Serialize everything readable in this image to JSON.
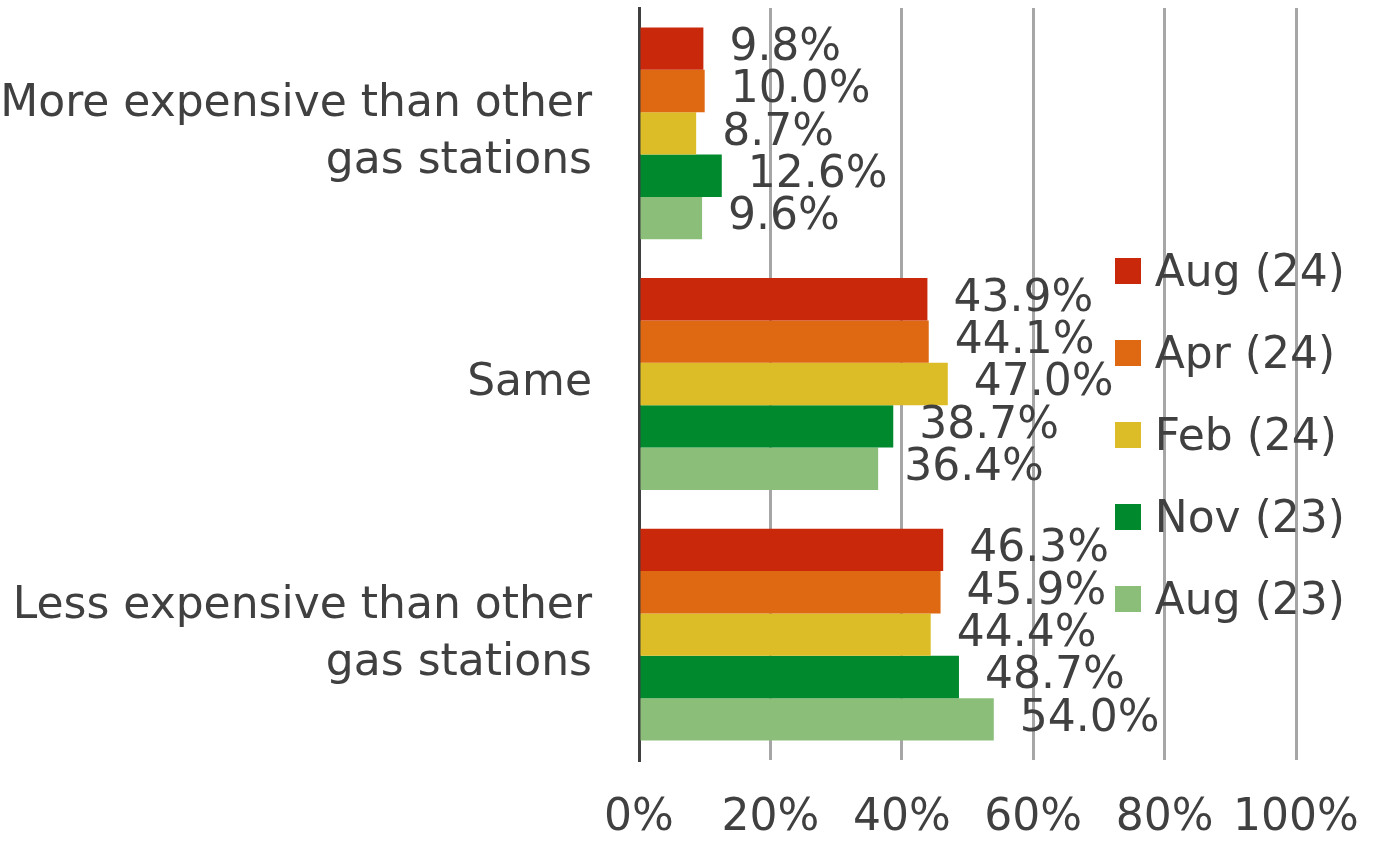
{
  "chart_data": {
    "type": "bar",
    "orientation": "horizontal",
    "categories": [
      "More expensive than other gas stations",
      "Same",
      "Less expensive than other gas stations"
    ],
    "series": [
      {
        "name": "Aug (24)",
        "color": "#c9280a",
        "values": [
          9.8,
          43.9,
          46.3
        ],
        "value_labels": [
          "9.8%",
          "43.9%",
          "46.3%"
        ]
      },
      {
        "name": "Apr (24)",
        "color": "#df6912",
        "values": [
          10.0,
          44.1,
          45.9
        ],
        "value_labels": [
          "10.0%",
          "44.1%",
          "45.9%"
        ]
      },
      {
        "name": "Feb (24)",
        "color": "#dcbd27",
        "values": [
          8.7,
          47.0,
          44.4
        ],
        "value_labels": [
          "8.7%",
          "47.0%",
          "44.4%"
        ]
      },
      {
        "name": "Nov (23)",
        "color": "#01892e",
        "values": [
          12.6,
          38.7,
          48.7
        ],
        "value_labels": [
          "12.6%",
          "38.7%",
          "48.7%"
        ]
      },
      {
        "name": "Aug (23)",
        "color": "#8bbe78",
        "values": [
          9.6,
          36.4,
          54.0
        ],
        "value_labels": [
          "9.6%",
          "36.4%",
          "54.0%"
        ]
      }
    ],
    "xlim": [
      0,
      100
    ],
    "xticks": [
      {
        "value": 0,
        "label": "0%"
      },
      {
        "value": 20,
        "label": "20%"
      },
      {
        "value": 40,
        "label": "40%"
      },
      {
        "value": 60,
        "label": "60%"
      },
      {
        "value": 80,
        "label": "80%"
      },
      {
        "value": 100,
        "label": "100%"
      }
    ],
    "grid": "x",
    "legend": "right"
  }
}
